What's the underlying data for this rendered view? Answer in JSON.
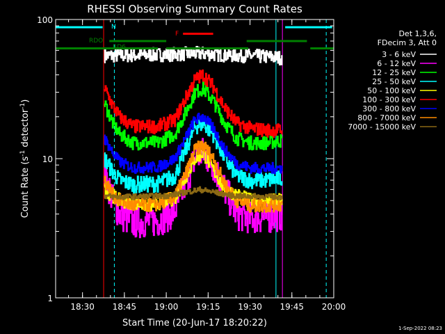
{
  "chart_data": {
    "type": "line",
    "title": "RHESSI Observing Summary Count Rates",
    "xlabel": "Start Time (20-Jun-17 18:20:22)",
    "ylabel_main": "Count Rate (s",
    "ylabel_sup1": "-1",
    "ylabel_mid": " detector",
    "ylabel_sup2": "-1",
    "ylabel_end": ")",
    "x_range_min": [
      18.3395,
      20.0
    ],
    "y_range": [
      1,
      100
    ],
    "yscale": "log",
    "xticks": [
      {
        "value": 18.5,
        "label": "18:30"
      },
      {
        "value": 18.75,
        "label": "18:45"
      },
      {
        "value": 19.0,
        "label": "19:00"
      },
      {
        "value": 19.25,
        "label": "19:15"
      },
      {
        "value": 19.5,
        "label": "19:30"
      },
      {
        "value": 19.75,
        "label": "19:45"
      },
      {
        "value": 20.0,
        "label": "20:00"
      }
    ],
    "yticks": [
      {
        "value": 1,
        "label": "1"
      },
      {
        "value": 10,
        "label": "10"
      },
      {
        "value": 100,
        "label": "100"
      }
    ],
    "legend_header": [
      "Det 1,3,6,",
      "FDecim 3, Att 0"
    ],
    "data_start": 18.63,
    "data_end": 19.69,
    "series": [
      {
        "name": "3 - 6 keV",
        "color": "#ffffff",
        "x": [
          18.63,
          18.7,
          19.0,
          19.2,
          19.3,
          19.45,
          19.6,
          19.69
        ],
        "y": [
          55,
          55,
          56,
          57,
          56,
          55,
          54,
          53
        ],
        "noise": 0.05
      },
      {
        "name": "6 - 12 keV",
        "color": "#ff00ff",
        "x": [
          18.63,
          18.68,
          18.72,
          18.8,
          18.95,
          19.05,
          19.12,
          19.17,
          19.22,
          19.28,
          19.35,
          19.42,
          19.5,
          19.6,
          19.69
        ],
        "y": [
          8,
          5,
          4,
          3.5,
          3.6,
          4.2,
          7,
          10,
          11,
          9,
          6,
          4,
          3.8,
          3.8,
          4
        ],
        "noise": 0.12
      },
      {
        "name": "12 - 25 keV",
        "color": "#00ff00",
        "x": [
          18.63,
          18.68,
          18.72,
          18.8,
          18.95,
          19.05,
          19.12,
          19.17,
          19.22,
          19.28,
          19.35,
          19.42,
          19.5,
          19.6,
          19.69
        ],
        "y": [
          25,
          18,
          15,
          13,
          13,
          15,
          22,
          30,
          32,
          26,
          18,
          14,
          13,
          13,
          13.5
        ],
        "noise": 0.05
      },
      {
        "name": "25 - 50 keV",
        "color": "#00ffff",
        "x": [
          18.63,
          18.68,
          18.72,
          18.8,
          18.95,
          19.05,
          19.12,
          19.17,
          19.22,
          19.28,
          19.35,
          19.42,
          19.5,
          19.6,
          19.69
        ],
        "y": [
          10,
          8,
          7,
          6.5,
          6.6,
          7.5,
          12,
          17,
          18,
          15,
          10,
          7.5,
          7,
          7,
          7.2
        ],
        "noise": 0.06
      },
      {
        "name": "50 - 100 keV",
        "color": "#ffff00",
        "x": [
          18.63,
          18.72,
          18.9,
          19.05,
          19.17,
          19.22,
          19.35,
          19.5,
          19.69
        ],
        "y": [
          6,
          5,
          4.6,
          5.2,
          10,
          11,
          6,
          5,
          5
        ],
        "noise": 0.05
      },
      {
        "name": "100 - 300 keV",
        "color": "#ff0000",
        "x": [
          18.63,
          18.68,
          18.72,
          18.8,
          18.95,
          19.05,
          19.12,
          19.17,
          19.22,
          19.28,
          19.35,
          19.42,
          19.5,
          19.6,
          19.69
        ],
        "y": [
          32,
          24,
          20,
          17,
          17,
          19,
          28,
          37,
          40,
          33,
          23,
          18,
          16.5,
          16,
          16
        ],
        "noise": 0.05
      },
      {
        "name": "300 - 800 keV",
        "color": "#0000ff",
        "x": [
          18.63,
          18.68,
          18.72,
          18.8,
          18.95,
          19.05,
          19.12,
          19.17,
          19.22,
          19.28,
          19.35,
          19.42,
          19.5,
          19.6,
          19.69
        ],
        "y": [
          14,
          11,
          9.5,
          8.6,
          8.7,
          10,
          14.5,
          19,
          20,
          16.5,
          11.5,
          9.2,
          8.6,
          8.5,
          8.6
        ],
        "noise": 0.04
      },
      {
        "name": "800 - 7000 keV",
        "color": "#ff8c00",
        "x": [
          18.63,
          18.68,
          18.72,
          18.8,
          18.95,
          19.05,
          19.12,
          19.17,
          19.22,
          19.28,
          19.35,
          19.42,
          19.5,
          19.6,
          19.69
        ],
        "y": [
          7,
          5.5,
          5,
          4.6,
          4.7,
          5.3,
          8,
          11.5,
          12.5,
          10,
          6.5,
          5,
          4.6,
          4.6,
          4.7
        ],
        "noise": 0.05
      },
      {
        "name": "7000 - 15000 keV",
        "color": "#8b6914",
        "x": [
          18.63,
          18.7,
          19.0,
          19.2,
          19.4,
          19.69
        ],
        "y": [
          5.4,
          5.3,
          5.4,
          6,
          5.4,
          5.3
        ],
        "noise": 0.02
      }
    ],
    "flags": [
      {
        "label": "N",
        "color": "#00ffff",
        "y": 88,
        "segments": [
          [
            18.3395,
            18.62
          ],
          [
            19.71,
            19.99
          ]
        ]
      },
      {
        "label": "F",
        "color": "#ff0000",
        "y": 79,
        "segments": [
          [
            19.1,
            19.28
          ]
        ]
      },
      {
        "label": "RDO",
        "color": "#008000",
        "y": 70,
        "segments": [
          [
            18.66,
            19.0
          ],
          [
            19.48,
            19.84
          ]
        ]
      },
      {
        "label": "RD6",
        "color": "#008000",
        "y": 62,
        "segments": [
          [
            18.3395,
            18.95
          ],
          [
            19.0,
            19.49
          ],
          [
            19.86,
            20.0
          ]
        ]
      }
    ],
    "vlines": [
      {
        "x": 18.3395,
        "color": "#00ffff",
        "style": "solid"
      },
      {
        "x": 18.6262,
        "color": "#ff0000",
        "style": "solid"
      },
      {
        "x": 18.69,
        "color": "#00ffff",
        "style": "dash"
      },
      {
        "x": 19.655,
        "color": "#00ffff",
        "style": "solid"
      },
      {
        "x": 19.6935,
        "color": "#ff00ff",
        "style": "solid"
      },
      {
        "x": 19.955,
        "color": "#00ffff",
        "style": "dash"
      }
    ]
  },
  "timestamp": "1-Sep-2022 08:23"
}
